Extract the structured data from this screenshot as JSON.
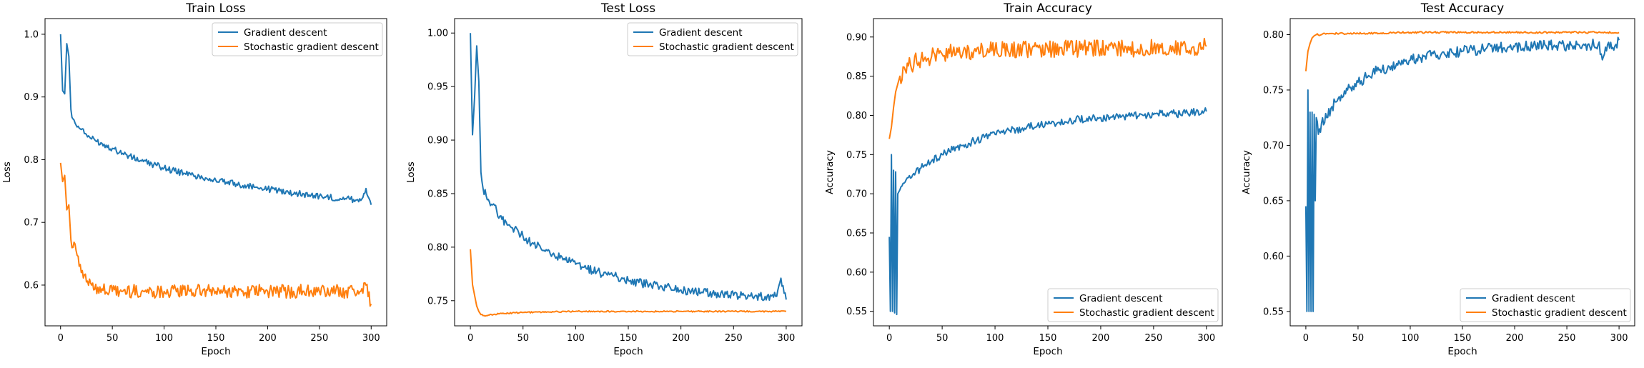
{
  "chart_data": [
    {
      "type": "line",
      "title": "Train Loss",
      "xlabel": "Epoch",
      "ylabel": "Loss",
      "xlim": [
        -15,
        315
      ],
      "ylim": [
        0.535,
        1.025
      ],
      "xticks": [
        0,
        50,
        100,
        150,
        200,
        250,
        300
      ],
      "yticks": [
        0.6,
        0.7,
        0.8,
        0.9,
        1.0
      ],
      "ytick_labels": [
        "0.6",
        "0.7",
        "0.8",
        "0.9",
        "1.0"
      ],
      "legend": "upper right",
      "grid": false,
      "series": [
        {
          "name": "Gradient descent",
          "color": "#1f77b4",
          "points": [
            [
              0,
              1.0
            ],
            [
              2,
              0.91
            ],
            [
              4,
              0.905
            ],
            [
              6,
              0.985
            ],
            [
              8,
              0.965
            ],
            [
              10,
              0.88
            ],
            [
              12,
              0.865
            ],
            [
              15,
              0.855
            ],
            [
              20,
              0.848
            ],
            [
              25,
              0.84
            ],
            [
              30,
              0.833
            ],
            [
              40,
              0.826
            ],
            [
              50,
              0.818
            ],
            [
              60,
              0.81
            ],
            [
              70,
              0.803
            ],
            [
              80,
              0.797
            ],
            [
              90,
              0.792
            ],
            [
              100,
              0.787
            ],
            [
              110,
              0.782
            ],
            [
              120,
              0.778
            ],
            [
              130,
              0.774
            ],
            [
              140,
              0.771
            ],
            [
              150,
              0.767
            ],
            [
              160,
              0.764
            ],
            [
              170,
              0.761
            ],
            [
              180,
              0.758
            ],
            [
              190,
              0.756
            ],
            [
              200,
              0.753
            ],
            [
              210,
              0.751
            ],
            [
              220,
              0.748
            ],
            [
              230,
              0.746
            ],
            [
              240,
              0.744
            ],
            [
              250,
              0.742
            ],
            [
              260,
              0.74
            ],
            [
              270,
              0.738
            ],
            [
              280,
              0.737
            ],
            [
              290,
              0.735
            ],
            [
              295,
              0.754
            ],
            [
              298,
              0.738
            ],
            [
              300,
              0.728
            ]
          ]
        },
        {
          "name": "Stochastic gradient descent",
          "color": "#ff7f0e",
          "points": [
            [
              0,
              0.795
            ],
            [
              2,
              0.765
            ],
            [
              4,
              0.775
            ],
            [
              6,
              0.72
            ],
            [
              8,
              0.728
            ],
            [
              10,
              0.672
            ],
            [
              12,
              0.66
            ],
            [
              15,
              0.655
            ],
            [
              18,
              0.63
            ],
            [
              20,
              0.62
            ],
            [
              25,
              0.605
            ],
            [
              30,
              0.6
            ],
            [
              40,
              0.594
            ],
            [
              50,
              0.59
            ],
            [
              60,
              0.59
            ],
            [
              70,
              0.59
            ],
            [
              80,
              0.59
            ],
            [
              90,
              0.59
            ],
            [
              100,
              0.59
            ],
            [
              125,
              0.59
            ],
            [
              150,
              0.59
            ],
            [
              175,
              0.59
            ],
            [
              200,
              0.59
            ],
            [
              225,
              0.59
            ],
            [
              250,
              0.59
            ],
            [
              275,
              0.59
            ],
            [
              290,
              0.59
            ],
            [
              295,
              0.6
            ],
            [
              300,
              0.57
            ]
          ]
        }
      ]
    },
    {
      "type": "line",
      "title": "Test Loss",
      "xlabel": "Epoch",
      "ylabel": "Loss",
      "xlim": [
        -15,
        315
      ],
      "ylim": [
        0.7265,
        1.0135
      ],
      "xticks": [
        0,
        50,
        100,
        150,
        200,
        250,
        300
      ],
      "yticks": [
        0.75,
        0.8,
        0.85,
        0.9,
        0.95,
        1.0
      ],
      "ytick_labels": [
        "0.75",
        "0.80",
        "0.85",
        "0.90",
        "0.95",
        "1.00"
      ],
      "legend": "upper right",
      "grid": false,
      "series": [
        {
          "name": "Gradient descent",
          "color": "#1f77b4",
          "points": [
            [
              0,
              1.0
            ],
            [
              2,
              0.905
            ],
            [
              4,
              0.94
            ],
            [
              6,
              0.988
            ],
            [
              8,
              0.955
            ],
            [
              10,
              0.87
            ],
            [
              12,
              0.855
            ],
            [
              15,
              0.848
            ],
            [
              20,
              0.84
            ],
            [
              25,
              0.834
            ],
            [
              30,
              0.826
            ],
            [
              40,
              0.818
            ],
            [
              50,
              0.81
            ],
            [
              60,
              0.803
            ],
            [
              70,
              0.797
            ],
            [
              80,
              0.792
            ],
            [
              90,
              0.788
            ],
            [
              100,
              0.784
            ],
            [
              110,
              0.78
            ],
            [
              120,
              0.777
            ],
            [
              130,
              0.774
            ],
            [
              140,
              0.772
            ],
            [
              150,
              0.769
            ],
            [
              160,
              0.767
            ],
            [
              170,
              0.765
            ],
            [
              180,
              0.763
            ],
            [
              190,
              0.762
            ],
            [
              200,
              0.76
            ],
            [
              210,
              0.759
            ],
            [
              220,
              0.758
            ],
            [
              230,
              0.757
            ],
            [
              240,
              0.756
            ],
            [
              250,
              0.755
            ],
            [
              260,
              0.755
            ],
            [
              270,
              0.754
            ],
            [
              280,
              0.754
            ],
            [
              290,
              0.754
            ],
            [
              295,
              0.771
            ],
            [
              298,
              0.757
            ],
            [
              300,
              0.751
            ]
          ]
        },
        {
          "name": "Stochastic gradient descent",
          "color": "#ff7f0e",
          "points": [
            [
              0,
              0.798
            ],
            [
              2,
              0.765
            ],
            [
              4,
              0.755
            ],
            [
              6,
              0.745
            ],
            [
              8,
              0.74
            ],
            [
              10,
              0.737
            ],
            [
              15,
              0.736
            ],
            [
              20,
              0.737
            ],
            [
              30,
              0.738
            ],
            [
              50,
              0.739
            ],
            [
              100,
              0.74
            ],
            [
              150,
              0.74
            ],
            [
              200,
              0.74
            ],
            [
              250,
              0.74
            ],
            [
              300,
              0.74
            ]
          ]
        }
      ]
    },
    {
      "type": "line",
      "title": "Train Accuracy",
      "xlabel": "Epoch",
      "ylabel": "Accuracy",
      "xlim": [
        -15,
        315
      ],
      "ylim": [
        0.5315,
        0.9235
      ],
      "xticks": [
        0,
        50,
        100,
        150,
        200,
        250,
        300
      ],
      "yticks": [
        0.55,
        0.6,
        0.65,
        0.7,
        0.75,
        0.8,
        0.85,
        0.9
      ],
      "ytick_labels": [
        "0.55",
        "0.60",
        "0.65",
        "0.70",
        "0.75",
        "0.80",
        "0.85",
        "0.90"
      ],
      "legend": "lower right",
      "grid": false,
      "series": [
        {
          "name": "Gradient descent",
          "color": "#1f77b4",
          "points": [
            [
              0,
              0.645
            ],
            [
              1,
              0.55
            ],
            [
              2,
              0.75
            ],
            [
              3,
              0.55
            ],
            [
              4,
              0.73
            ],
            [
              5,
              0.548
            ],
            [
              6,
              0.728
            ],
            [
              7,
              0.546
            ],
            [
              8,
              0.7
            ],
            [
              10,
              0.705
            ],
            [
              12,
              0.71
            ],
            [
              15,
              0.715
            ],
            [
              20,
              0.72
            ],
            [
              25,
              0.728
            ],
            [
              30,
              0.733
            ],
            [
              40,
              0.742
            ],
            [
              50,
              0.75
            ],
            [
              60,
              0.756
            ],
            [
              70,
              0.762
            ],
            [
              80,
              0.767
            ],
            [
              90,
              0.772
            ],
            [
              100,
              0.776
            ],
            [
              110,
              0.779
            ],
            [
              120,
              0.782
            ],
            [
              130,
              0.785
            ],
            [
              140,
              0.787
            ],
            [
              150,
              0.789
            ],
            [
              160,
              0.791
            ],
            [
              170,
              0.793
            ],
            [
              180,
              0.795
            ],
            [
              190,
              0.796
            ],
            [
              200,
              0.797
            ],
            [
              210,
              0.798
            ],
            [
              220,
              0.799
            ],
            [
              230,
              0.8
            ],
            [
              240,
              0.8
            ],
            [
              250,
              0.801
            ],
            [
              260,
              0.802
            ],
            [
              270,
              0.802
            ],
            [
              280,
              0.803
            ],
            [
              290,
              0.804
            ],
            [
              300,
              0.805
            ]
          ]
        },
        {
          "name": "Stochastic gradient descent",
          "color": "#ff7f0e",
          "points": [
            [
              0,
              0.77
            ],
            [
              2,
              0.785
            ],
            [
              4,
              0.81
            ],
            [
              6,
              0.83
            ],
            [
              8,
              0.84
            ],
            [
              10,
              0.85
            ],
            [
              15,
              0.858
            ],
            [
              20,
              0.865
            ],
            [
              30,
              0.872
            ],
            [
              40,
              0.875
            ],
            [
              50,
              0.878
            ],
            [
              60,
              0.88
            ],
            [
              80,
              0.882
            ],
            [
              100,
              0.884
            ],
            [
              150,
              0.885
            ],
            [
              200,
              0.885
            ],
            [
              250,
              0.886
            ],
            [
              300,
              0.888
            ]
          ]
        }
      ]
    },
    {
      "type": "line",
      "title": "Test Accuracy",
      "xlabel": "Epoch",
      "ylabel": "Accuracy",
      "xlim": [
        -15,
        315
      ],
      "ylim": [
        0.537,
        0.8145
      ],
      "xticks": [
        0,
        50,
        100,
        150,
        200,
        250,
        300
      ],
      "yticks": [
        0.55,
        0.6,
        0.65,
        0.7,
        0.75,
        0.8
      ],
      "ytick_labels": [
        "0.55",
        "0.60",
        "0.65",
        "0.70",
        "0.75",
        "0.80"
      ],
      "legend": "lower right",
      "grid": false,
      "series": [
        {
          "name": "Gradient descent",
          "color": "#1f77b4",
          "points": [
            [
              0,
              0.645
            ],
            [
              1,
              0.55
            ],
            [
              2,
              0.75
            ],
            [
              3,
              0.55
            ],
            [
              4,
              0.73
            ],
            [
              5,
              0.55
            ],
            [
              6,
              0.73
            ],
            [
              7,
              0.55
            ],
            [
              8,
              0.728
            ],
            [
              9,
              0.65
            ],
            [
              10,
              0.725
            ],
            [
              12,
              0.71
            ],
            [
              15,
              0.72
            ],
            [
              20,
              0.725
            ],
            [
              25,
              0.735
            ],
            [
              30,
              0.74
            ],
            [
              40,
              0.75
            ],
            [
              50,
              0.757
            ],
            [
              60,
              0.763
            ],
            [
              70,
              0.768
            ],
            [
              80,
              0.771
            ],
            [
              90,
              0.774
            ],
            [
              100,
              0.777
            ],
            [
              110,
              0.779
            ],
            [
              120,
              0.781
            ],
            [
              130,
              0.783
            ],
            [
              140,
              0.784
            ],
            [
              150,
              0.785
            ],
            [
              160,
              0.786
            ],
            [
              170,
              0.787
            ],
            [
              180,
              0.788
            ],
            [
              190,
              0.788
            ],
            [
              200,
              0.789
            ],
            [
              210,
              0.789
            ],
            [
              220,
              0.79
            ],
            [
              230,
              0.79
            ],
            [
              240,
              0.79
            ],
            [
              250,
              0.79
            ],
            [
              260,
              0.791
            ],
            [
              270,
              0.791
            ],
            [
              280,
              0.791
            ],
            [
              285,
              0.78
            ],
            [
              290,
              0.793
            ],
            [
              295,
              0.786
            ],
            [
              300,
              0.795
            ]
          ]
        },
        {
          "name": "Stochastic gradient descent",
          "color": "#ff7f0e",
          "points": [
            [
              0,
              0.767
            ],
            [
              2,
              0.785
            ],
            [
              4,
              0.792
            ],
            [
              6,
              0.797
            ],
            [
              8,
              0.799
            ],
            [
              10,
              0.8
            ],
            [
              15,
              0.8
            ],
            [
              20,
              0.801
            ],
            [
              30,
              0.801
            ],
            [
              50,
              0.801
            ],
            [
              100,
              0.802
            ],
            [
              150,
              0.802
            ],
            [
              200,
              0.802
            ],
            [
              250,
              0.802
            ],
            [
              300,
              0.802
            ]
          ]
        }
      ]
    }
  ]
}
